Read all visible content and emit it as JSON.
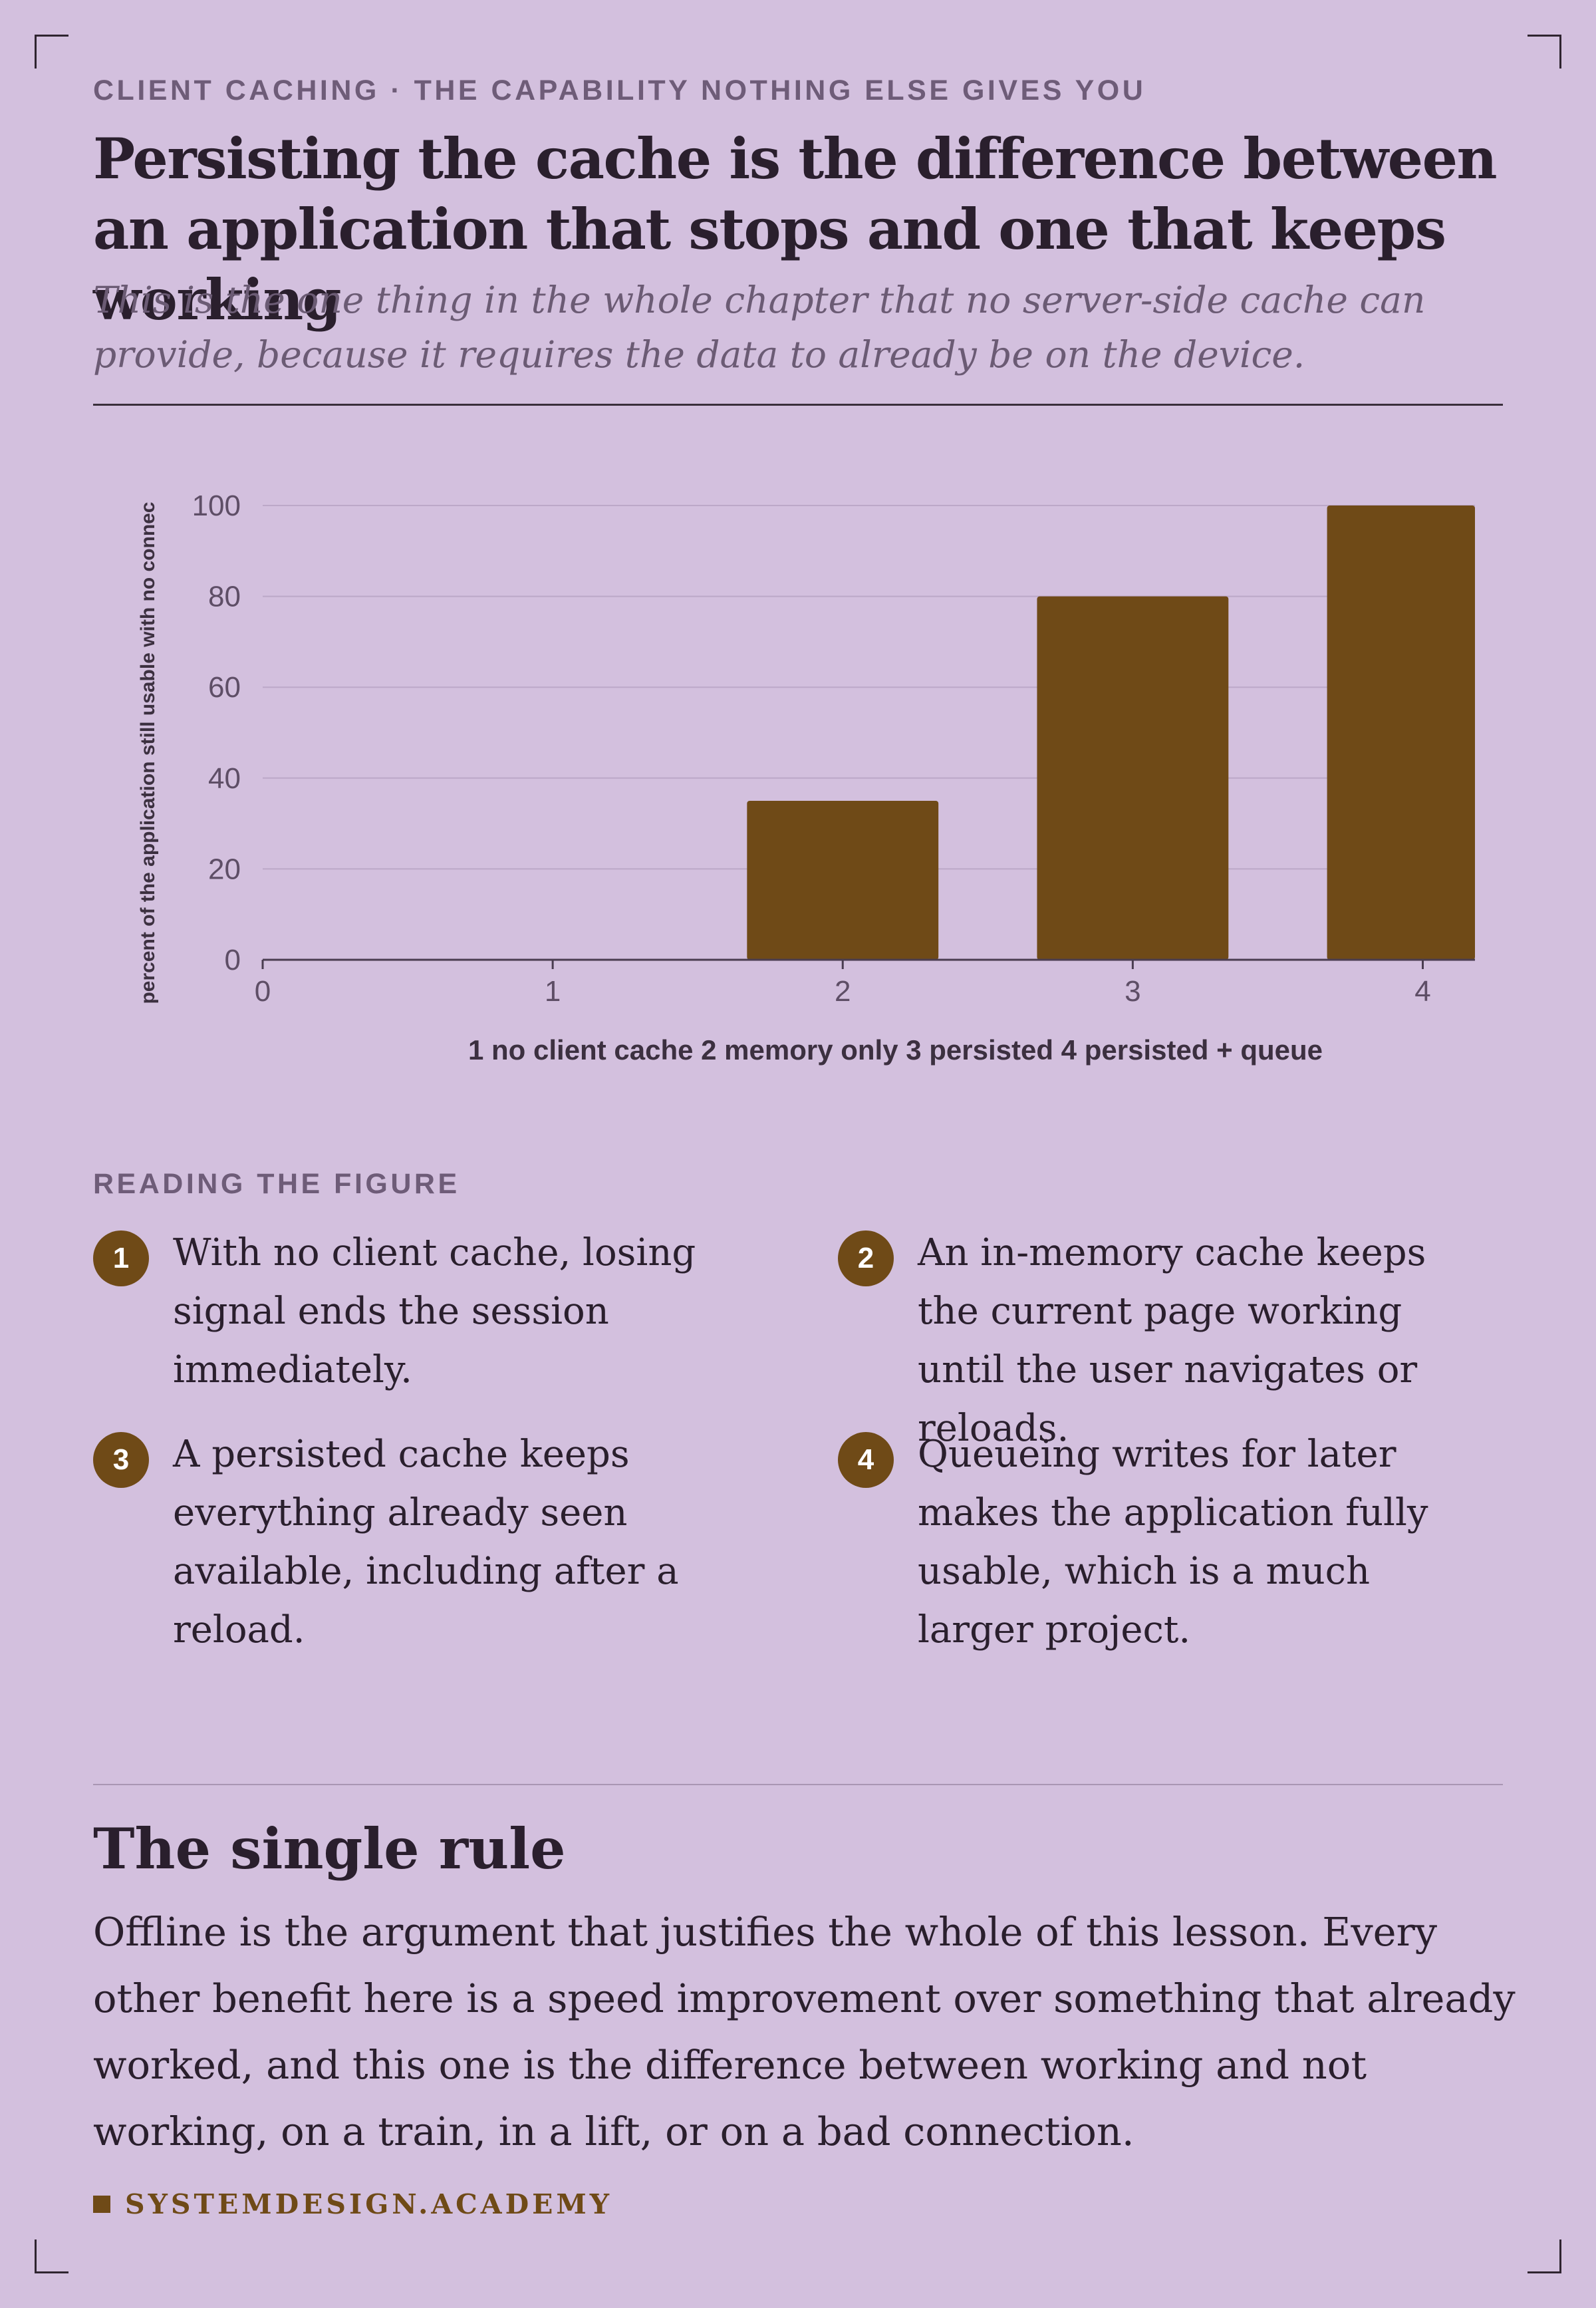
{
  "kicker": "CLIENT CACHING · THE CAPABILITY NOTHING ELSE GIVES YOU",
  "headline": "Persisting the cache is the difference between an application that stops and one that keeps working",
  "dek": "This is the one thing in the whole chapter that no server-side cache can provide, because it requires the data to already be on the device.",
  "colors": {
    "background": "#d3c0de",
    "bar": "#6f4a17",
    "ink": "#2a1f2d",
    "muted": "#6e5c78",
    "grid": "#bca8c8"
  },
  "chart_data": {
    "type": "bar",
    "x": [
      0,
      1,
      2,
      3,
      4
    ],
    "values": [
      null,
      0,
      35,
      80,
      100
    ],
    "xticks": [
      "0",
      "1",
      "2",
      "3",
      "4"
    ],
    "yticks": [
      "0",
      "20",
      "40",
      "60",
      "80",
      "100"
    ],
    "xlabel": "1 no client cache 2 memory only 3 persisted 4 persisted + queue",
    "ylabel": "percent of the application still usable with no connec",
    "xlim": [
      0,
      4.18
    ],
    "ylim": [
      0,
      100
    ],
    "grid": true,
    "legend": "none"
  },
  "reading": {
    "label": "READING THE FIGURE",
    "notes": [
      {
        "num": "1",
        "text": "With no client cache, losing signal ends the session immediately."
      },
      {
        "num": "2",
        "text": "An in-memory cache keeps the current page working until the user navigates or reloads."
      },
      {
        "num": "3",
        "text": "A persisted cache keeps everything already seen available, including after a reload."
      },
      {
        "num": "4",
        "text": "Queueing writes for later makes the application fully usable, which is a much larger project."
      }
    ]
  },
  "rule": {
    "title": "The single rule",
    "body": "Offline is the argument that justifies the whole of this lesson. Every other benefit here is a speed improvement over something that already worked, and this one is the difference between working and not working, on a train, in a lift, or on a bad connection."
  },
  "brand": "SYSTEMDESIGN.ACADEMY"
}
